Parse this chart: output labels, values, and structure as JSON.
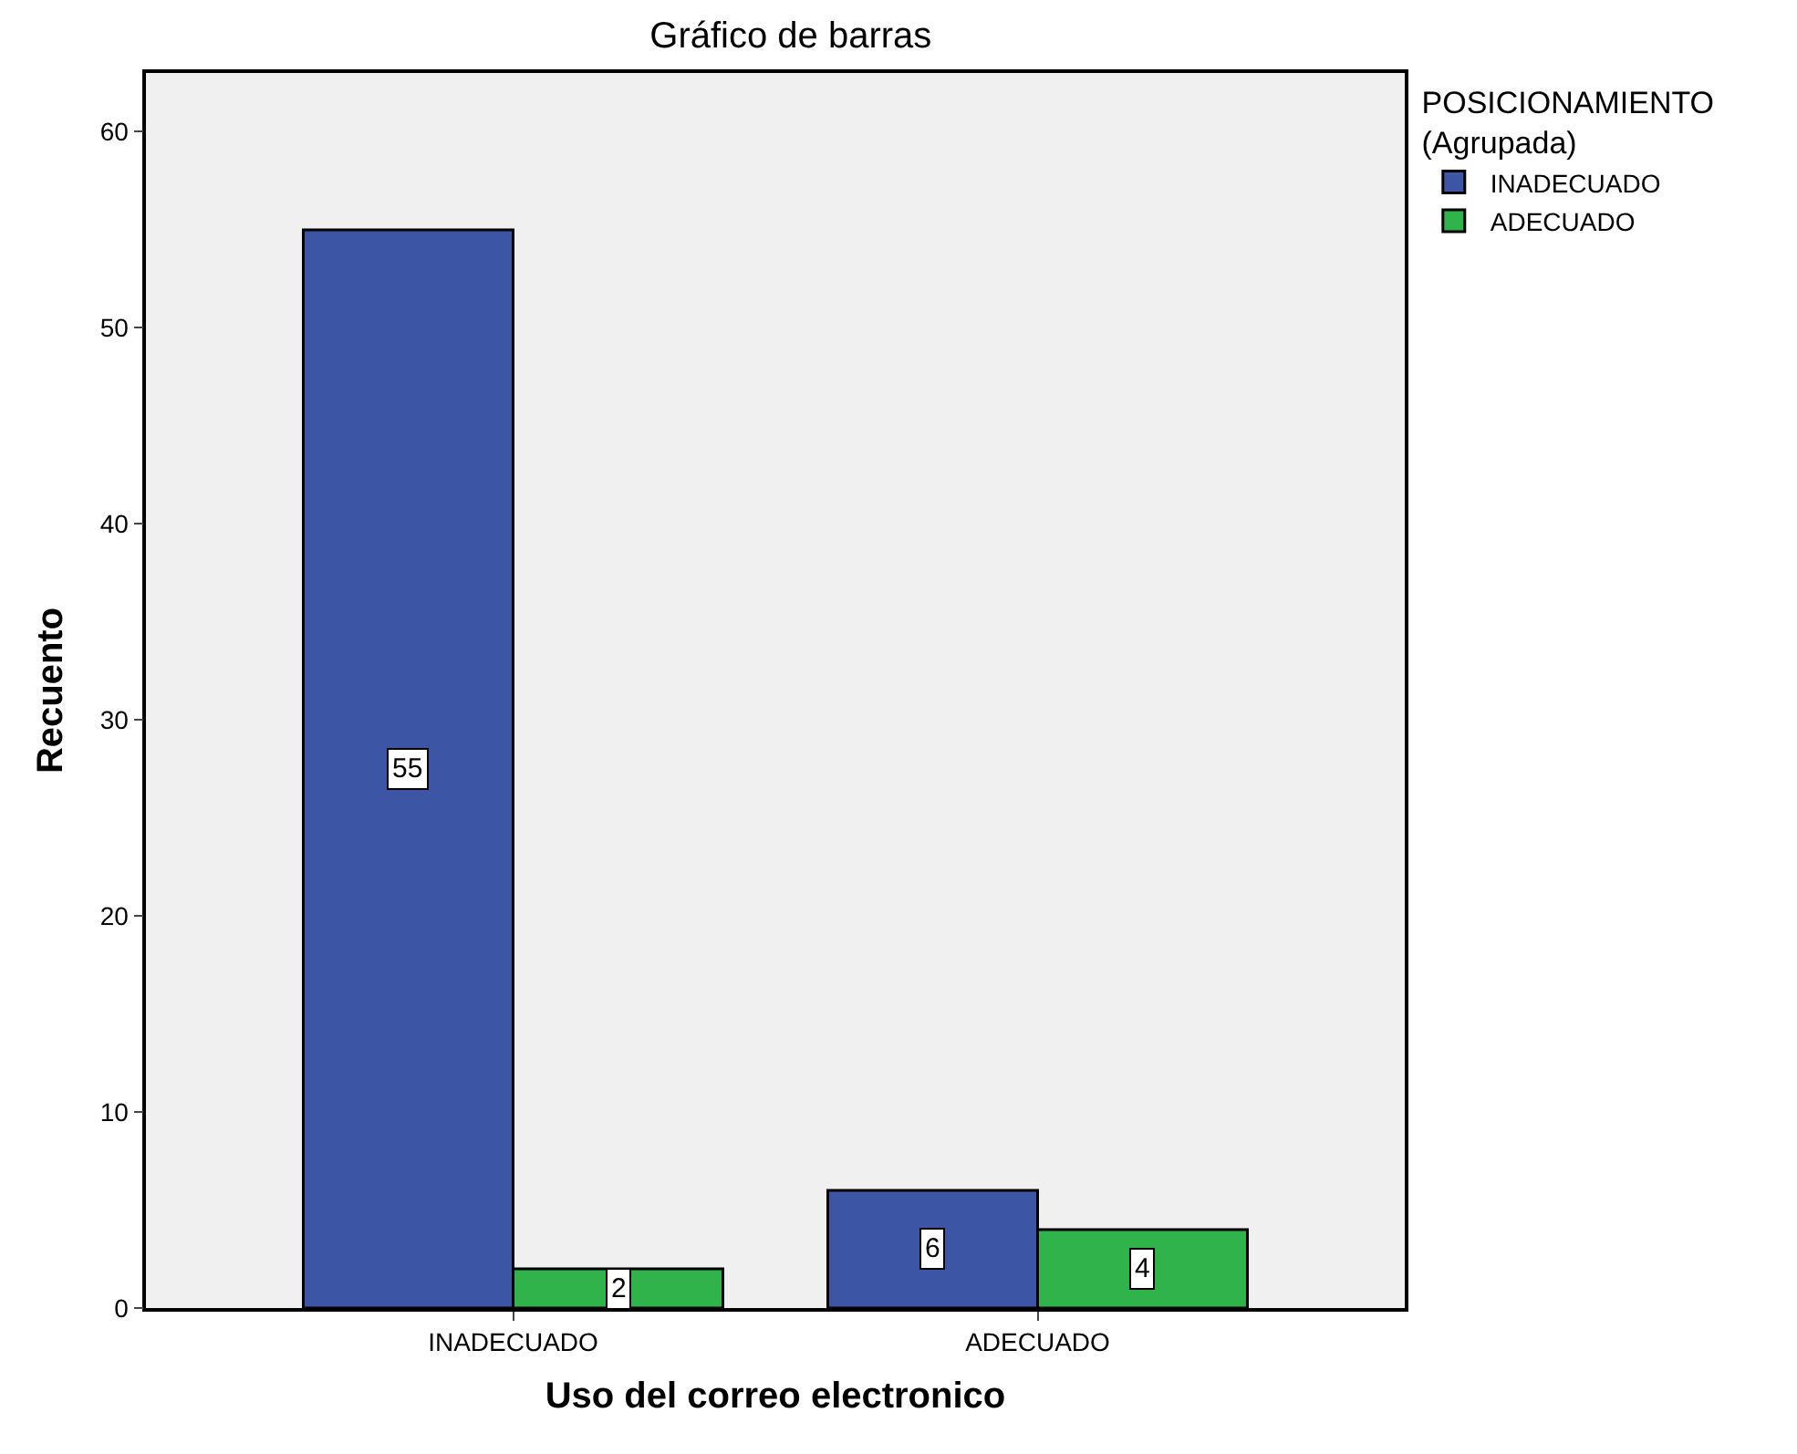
{
  "chart_data": {
    "type": "bar",
    "title": "Gráfico de barras",
    "xlabel": "Uso del correo electronico",
    "ylabel": "Recuento",
    "legend_title": "POSICIONAMIENTO\n(Agrupada)",
    "categories": [
      "INADECUADO",
      "ADECUADO"
    ],
    "series": [
      {
        "name": "INADECUADO",
        "color": "#3c55a5",
        "values": [
          55,
          6
        ]
      },
      {
        "name": "ADECUADO",
        "color": "#2fb34a",
        "values": [
          2,
          4
        ]
      }
    ],
    "ylim": [
      0,
      63
    ],
    "yticks": [
      0,
      10,
      20,
      30,
      40,
      50,
      60
    ],
    "grid": false,
    "legend": "top right",
    "data_labels": true
  }
}
